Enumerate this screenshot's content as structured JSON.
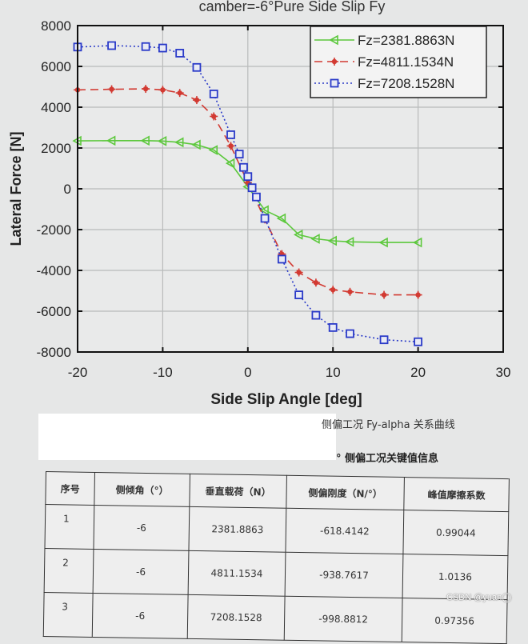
{
  "chart_data": {
    "type": "line",
    "title": "camber=-6°Pure Side Slip Fy",
    "xlabel": "Side Slip Angle [deg]",
    "ylabel": "Lateral Force [N]",
    "xlim": [
      -20,
      30
    ],
    "ylim": [
      -8000,
      8000
    ],
    "xticks": [
      -20,
      -10,
      0,
      10,
      20,
      30
    ],
    "yticks": [
      -8000,
      -6000,
      -4000,
      -2000,
      0,
      2000,
      4000,
      6000,
      8000
    ],
    "grid": true,
    "legend_position": "upper right",
    "series": [
      {
        "name": "Fz=2381.8863N",
        "color": "#5cc83c",
        "line_style": "solid",
        "marker": "left-triangle",
        "x": [
          -20,
          -16,
          -12,
          -10,
          -8,
          -6,
          -4,
          -2,
          0,
          2,
          4,
          6,
          8,
          10,
          12,
          16,
          20
        ],
        "y": [
          2350,
          2360,
          2360,
          2340,
          2280,
          2160,
          1900,
          1250,
          100,
          -1050,
          -1450,
          -2250,
          -2450,
          -2550,
          -2600,
          -2630,
          -2630
        ]
      },
      {
        "name": "Fz=4811.1534N",
        "color": "#d23a32",
        "line_style": "dashed",
        "marker": "star",
        "x": [
          -20,
          -16,
          -12,
          -10,
          -8,
          -6,
          -4,
          -2,
          0,
          2,
          4,
          6,
          8,
          10,
          12,
          16,
          20
        ],
        "y": [
          4850,
          4880,
          4900,
          4850,
          4700,
          4350,
          3550,
          2100,
          300,
          -1500,
          -3200,
          -4100,
          -4600,
          -4950,
          -5050,
          -5200,
          -5200
        ]
      },
      {
        "name": "Fz=7208.1528N",
        "color": "#2a3ac8",
        "line_style": "dotted",
        "marker": "square",
        "x": [
          -20,
          -16,
          -12,
          -10,
          -8,
          -6,
          -4,
          -2,
          -1,
          -0.5,
          0,
          0.5,
          1,
          2,
          4,
          6,
          8,
          10,
          12,
          16,
          20
        ],
        "y": [
          6950,
          7020,
          6970,
          6900,
          6650,
          5950,
          4650,
          2650,
          1700,
          1050,
          600,
          50,
          -400,
          -1450,
          -3450,
          -5200,
          -6200,
          -6800,
          -7100,
          -7400,
          -7500
        ]
      }
    ]
  },
  "captions": {
    "figure_caption": "侧偏工况 Fy-alpha 关系曲线",
    "table_caption": "° 侧偏工况关键值信息"
  },
  "table": {
    "headers": [
      "序号",
      "侧倾角（°）",
      "垂直载荷（N）",
      "侧偏刚度（N/°）",
      "峰值摩擦系数"
    ],
    "rows": [
      [
        "1",
        "-6",
        "2381.8863",
        "-618.4142",
        "0.99044"
      ],
      [
        "2",
        "-6",
        "4811.1534",
        "-938.7617",
        "1.0136"
      ],
      [
        "3",
        "-6",
        "7208.1528",
        "-998.8812",
        "0.97356"
      ]
    ]
  },
  "watermark": "CSDN @yuan◯"
}
